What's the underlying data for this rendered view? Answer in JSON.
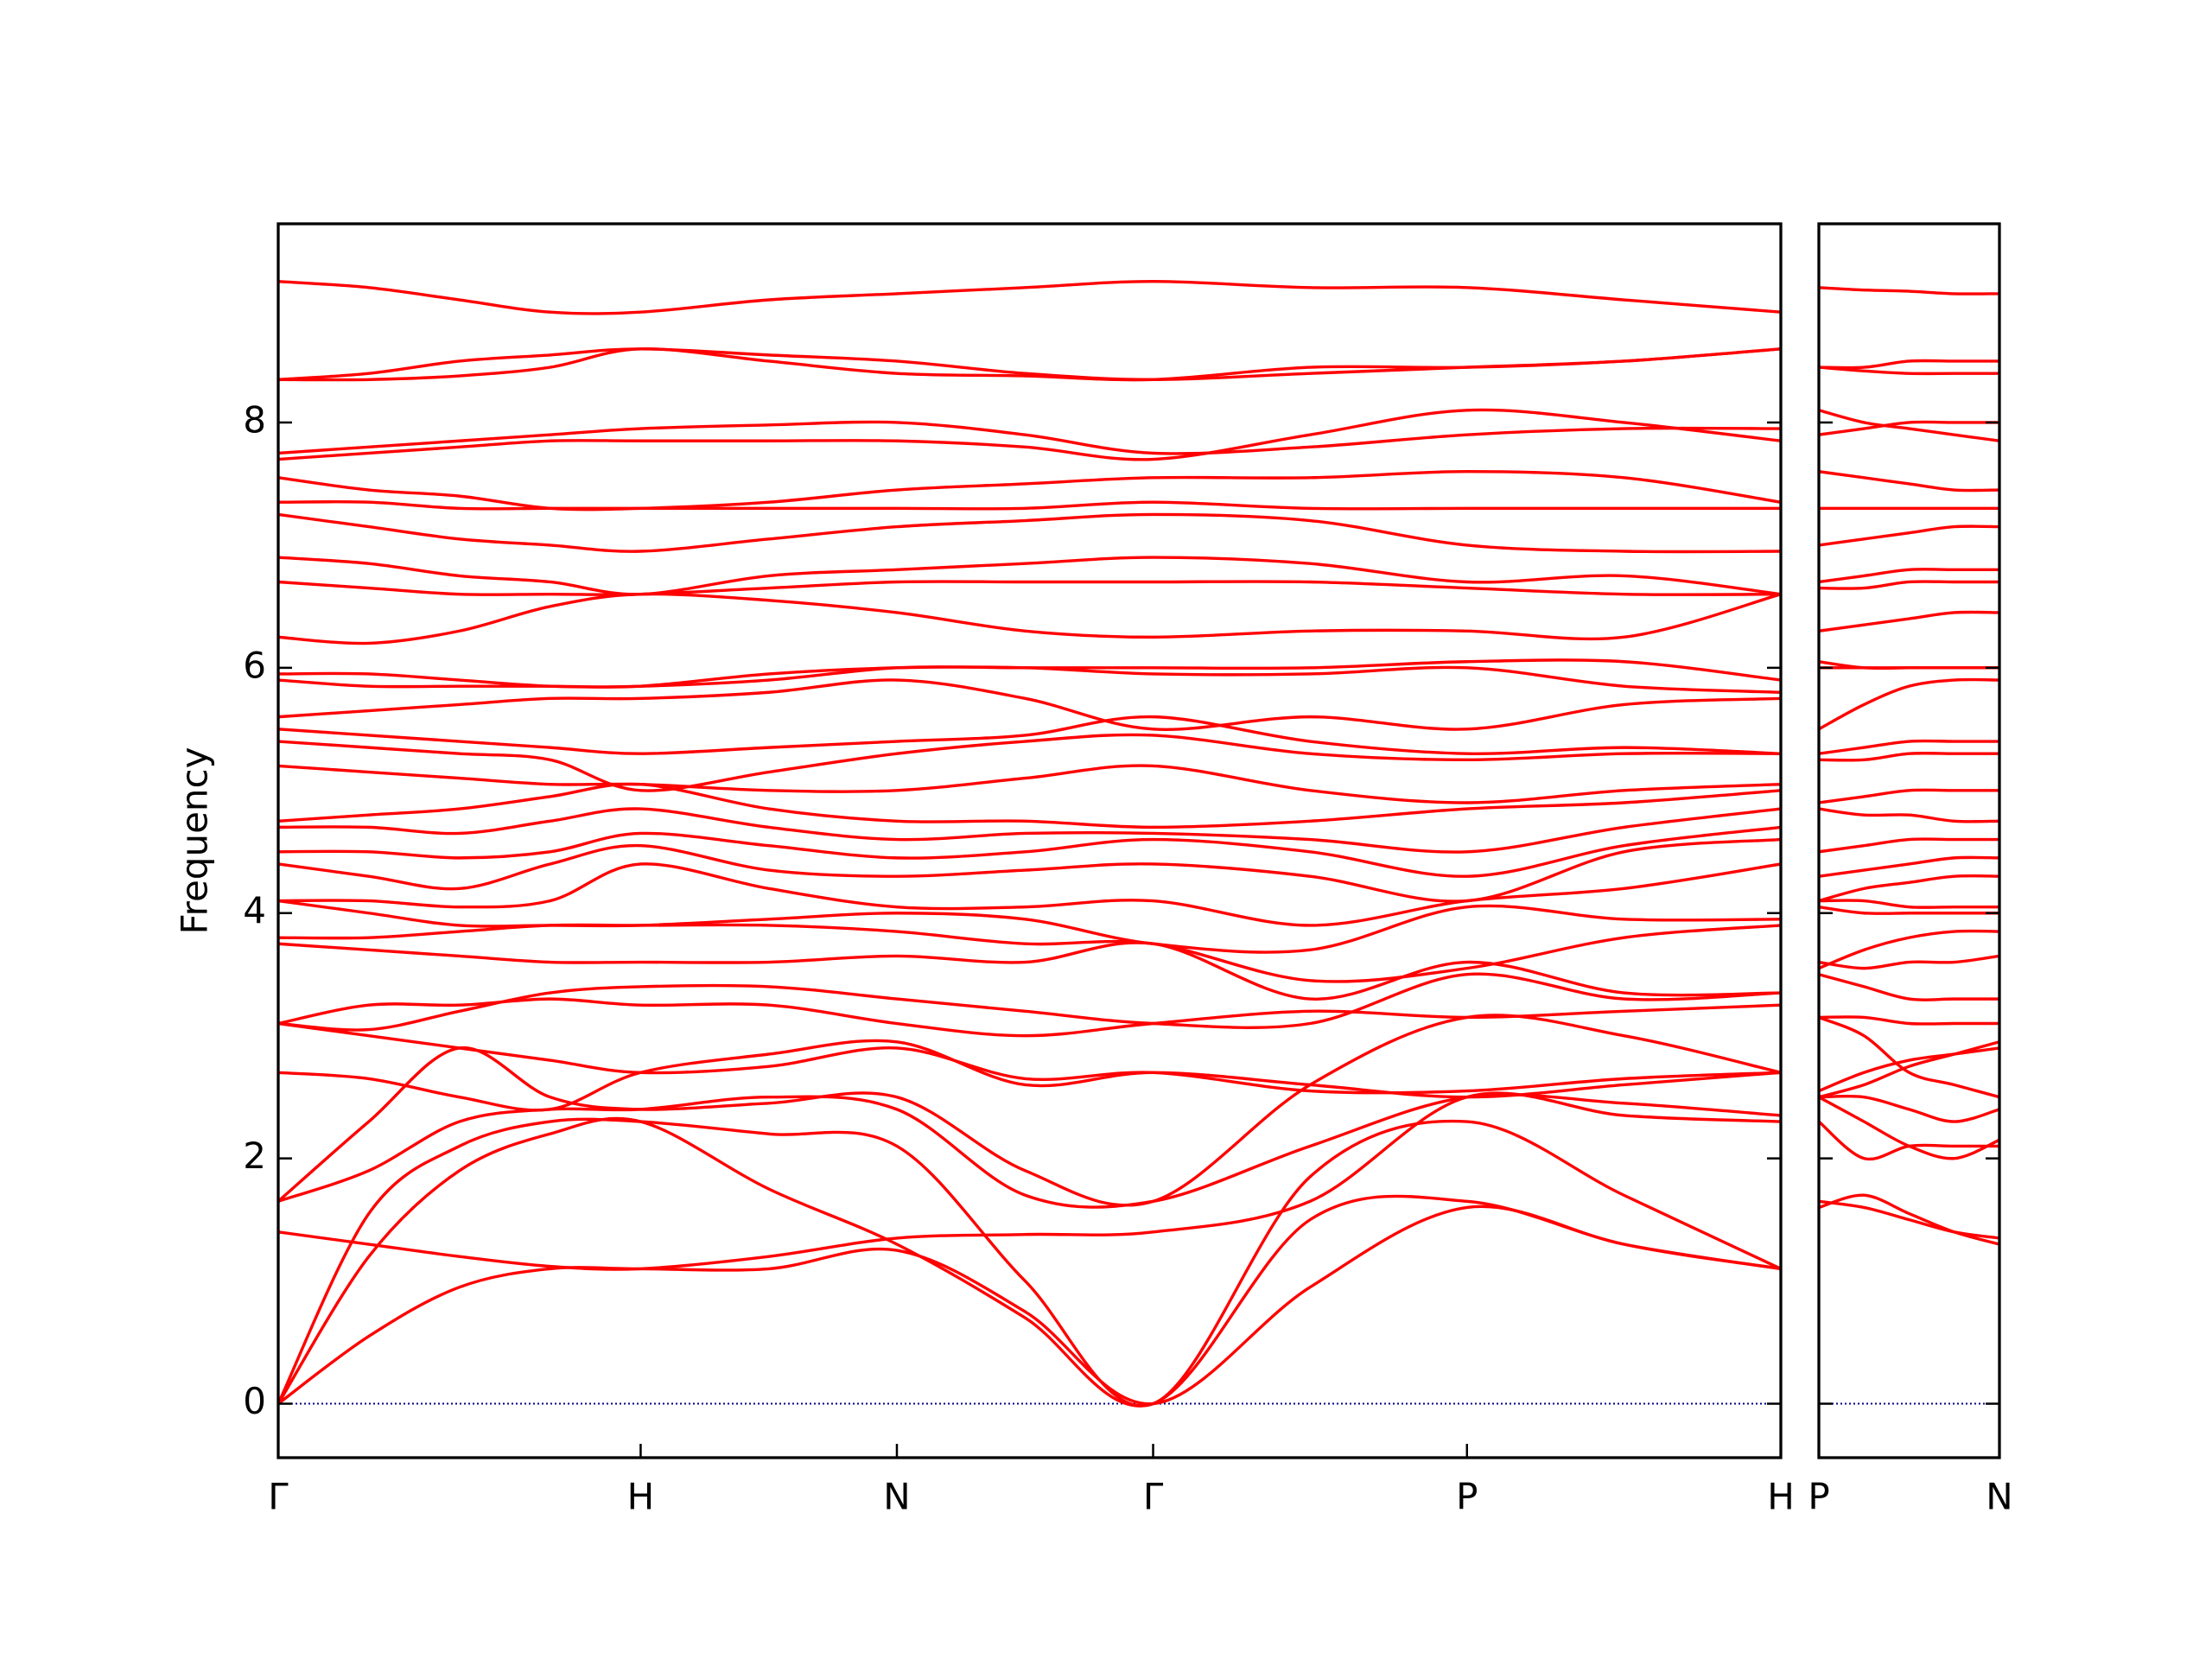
{
  "chart_data": [
    {
      "type": "line",
      "y_label": "Frequency",
      "color": "#ff0000",
      "hlines": [
        0
      ],
      "hline_color": "#00008b",
      "show_ytick_labels": true,
      "x": [
        0,
        0.25,
        0.5,
        0.75,
        1,
        1.354,
        1.707,
        2.061,
        2.414,
        2.847,
        3.28,
        3.713,
        4.146
      ],
      "xlim": [
        0,
        4.146
      ],
      "ylim": [
        -0.44,
        9.62
      ],
      "xticks": [
        {
          "value": 0,
          "label": "Γ"
        },
        {
          "value": 1,
          "label": "H"
        },
        {
          "value": 1.707,
          "label": "N"
        },
        {
          "value": 2.414,
          "label": "Γ"
        },
        {
          "value": 3.28,
          "label": "P"
        },
        {
          "value": 4.146,
          "label": "H"
        }
      ],
      "yticks": [
        0,
        2,
        4,
        6,
        8
      ],
      "series": [
        {
          "values": [
            0,
            0.55,
            0.95,
            1.1,
            1.1,
            1.1,
            1.25,
            0.75,
            0,
            0.95,
            1.6,
            1.3,
            1.1
          ]
        },
        {
          "values": [
            0,
            1.2,
            1.9,
            2.2,
            2.3,
            1.75,
            1.3,
            0.7,
            0,
            1.5,
            1.65,
            1.3,
            1.1
          ]
        },
        {
          "values": [
            0,
            1.55,
            2.1,
            2.3,
            2.3,
            2.2,
            2.1,
            1.0,
            0,
            1.85,
            2.3,
            1.7,
            1.1
          ]
        },
        {
          "values": [
            1.4,
            1.3,
            1.2,
            1.12,
            1.1,
            1.2,
            1.35,
            1.38,
            1.4,
            1.65,
            2.5,
            2.35,
            2.3
          ]
        },
        {
          "values": [
            1.65,
            1.9,
            2.3,
            2.4,
            2.4,
            2.5,
            2.4,
            1.7,
            1.65,
            2.1,
            2.5,
            2.45,
            2.35
          ]
        },
        {
          "values": [
            1.65,
            2.3,
            2.9,
            2.5,
            2.4,
            2.45,
            2.5,
            1.9,
            1.65,
            2.6,
            3.15,
            3.0,
            2.7
          ]
        },
        {
          "values": [
            2.7,
            2.65,
            2.5,
            2.4,
            2.7,
            2.85,
            2.95,
            2.6,
            2.7,
            2.6,
            2.5,
            2.6,
            2.7
          ]
        },
        {
          "values": [
            3.1,
            3.0,
            2.9,
            2.8,
            2.7,
            2.75,
            2.9,
            2.65,
            2.7,
            2.55,
            2.55,
            2.65,
            2.7
          ]
        },
        {
          "values": [
            3.1,
            3.25,
            3.25,
            3.3,
            3.25,
            3.25,
            3.1,
            3.0,
            3.1,
            3.2,
            3.15,
            3.2,
            3.25
          ]
        },
        {
          "values": [
            3.1,
            3.05,
            3.2,
            3.35,
            3.4,
            3.4,
            3.3,
            3.2,
            3.1,
            3.1,
            3.5,
            3.3,
            3.35
          ]
        },
        {
          "values": [
            3.75,
            3.7,
            3.65,
            3.6,
            3.6,
            3.6,
            3.65,
            3.6,
            3.75,
            3.3,
            3.6,
            3.35,
            3.35
          ]
        },
        {
          "values": [
            3.8,
            3.8,
            3.85,
            3.9,
            3.9,
            3.9,
            3.85,
            3.75,
            3.75,
            3.45,
            3.55,
            3.8,
            3.9
          ]
        },
        {
          "values": [
            4.1,
            4.0,
            3.9,
            3.9,
            3.9,
            3.95,
            4.0,
            3.95,
            3.75,
            3.7,
            4.05,
            3.95,
            3.95
          ]
        },
        {
          "values": [
            4.1,
            4.1,
            4.05,
            4.1,
            4.4,
            4.2,
            4.05,
            4.05,
            4.1,
            3.9,
            4.1,
            4.2,
            4.4
          ]
        },
        {
          "values": [
            4.4,
            4.3,
            4.2,
            4.4,
            4.55,
            4.35,
            4.3,
            4.35,
            4.4,
            4.3,
            4.1,
            4.5,
            4.6
          ]
        },
        {
          "values": [
            4.5,
            4.5,
            4.45,
            4.5,
            4.65,
            4.55,
            4.45,
            4.5,
            4.6,
            4.5,
            4.3,
            4.55,
            4.7
          ]
        },
        {
          "values": [
            4.7,
            4.7,
            4.65,
            4.75,
            4.85,
            4.7,
            4.6,
            4.65,
            4.65,
            4.6,
            4.5,
            4.7,
            4.85
          ]
        },
        {
          "values": [
            4.75,
            4.8,
            4.85,
            4.95,
            5.05,
            4.85,
            4.75,
            4.75,
            4.7,
            4.75,
            4.85,
            4.9,
            5.0
          ]
        },
        {
          "values": [
            5.2,
            5.15,
            5.1,
            5.05,
            5.05,
            5.0,
            5.0,
            5.1,
            5.2,
            5.0,
            4.9,
            5.0,
            5.05
          ]
        },
        {
          "values": [
            5.4,
            5.35,
            5.3,
            5.25,
            5.0,
            5.15,
            5.3,
            5.4,
            5.45,
            5.3,
            5.25,
            5.3,
            5.3
          ]
        },
        {
          "values": [
            5.5,
            5.45,
            5.4,
            5.35,
            5.3,
            5.35,
            5.4,
            5.45,
            5.6,
            5.4,
            5.3,
            5.35,
            5.3
          ]
        },
        {
          "values": [
            5.6,
            5.65,
            5.7,
            5.75,
            5.75,
            5.8,
            5.9,
            5.75,
            5.5,
            5.6,
            5.5,
            5.7,
            5.75
          ]
        },
        {
          "values": [
            5.9,
            5.85,
            5.85,
            5.85,
            5.85,
            5.95,
            6.0,
            6.0,
            5.95,
            5.95,
            6.0,
            5.85,
            5.8
          ]
        },
        {
          "values": [
            5.95,
            5.95,
            5.9,
            5.85,
            5.85,
            5.9,
            6.0,
            6.0,
            6.0,
            6.0,
            6.05,
            6.05,
            5.9
          ]
        },
        {
          "values": [
            6.25,
            6.2,
            6.3,
            6.5,
            6.6,
            6.55,
            6.45,
            6.3,
            6.25,
            6.3,
            6.3,
            6.25,
            6.6
          ]
        },
        {
          "values": [
            6.7,
            6.65,
            6.6,
            6.6,
            6.6,
            6.65,
            6.7,
            6.7,
            6.7,
            6.7,
            6.65,
            6.6,
            6.6
          ]
        },
        {
          "values": [
            6.9,
            6.85,
            6.75,
            6.7,
            6.6,
            6.75,
            6.8,
            6.85,
            6.9,
            6.85,
            6.7,
            6.75,
            6.6
          ]
        },
        {
          "values": [
            7.25,
            7.15,
            7.05,
            7.0,
            6.95,
            7.05,
            7.15,
            7.2,
            7.25,
            7.2,
            7.0,
            6.95,
            6.95
          ]
        },
        {
          "values": [
            7.35,
            7.35,
            7.3,
            7.3,
            7.3,
            7.3,
            7.3,
            7.3,
            7.35,
            7.3,
            7.3,
            7.3,
            7.3
          ]
        },
        {
          "values": [
            7.55,
            7.45,
            7.4,
            7.3,
            7.3,
            7.35,
            7.45,
            7.5,
            7.55,
            7.55,
            7.6,
            7.55,
            7.35
          ]
        },
        {
          "values": [
            7.7,
            7.75,
            7.8,
            7.85,
            7.85,
            7.85,
            7.85,
            7.8,
            7.7,
            7.9,
            8.1,
            8.0,
            7.85
          ]
        },
        {
          "values": [
            7.75,
            7.8,
            7.85,
            7.9,
            7.95,
            7.98,
            8.0,
            7.9,
            7.75,
            7.8,
            7.9,
            7.95,
            7.95
          ]
        },
        {
          "values": [
            8.35,
            8.4,
            8.5,
            8.55,
            8.6,
            8.55,
            8.5,
            8.4,
            8.35,
            8.4,
            8.45,
            8.5,
            8.6
          ]
        },
        {
          "values": [
            8.35,
            8.35,
            8.38,
            8.45,
            8.6,
            8.5,
            8.4,
            8.38,
            8.35,
            8.45,
            8.45,
            8.5,
            8.6
          ]
        },
        {
          "values": [
            9.15,
            9.1,
            9.0,
            8.9,
            8.9,
            9.0,
            9.05,
            9.1,
            9.15,
            9.1,
            9.1,
            9.0,
            8.9
          ]
        }
      ]
    },
    {
      "type": "line",
      "color": "#ff0000",
      "hlines": [
        0
      ],
      "hline_color": "#00008b",
      "show_ytick_labels": false,
      "x": [
        0,
        0.125,
        0.25,
        0.375,
        0.5
      ],
      "xlim": [
        0,
        0.5
      ],
      "ylim": [
        -0.44,
        9.62
      ],
      "xticks": [
        {
          "value": 0,
          "label": "P"
        },
        {
          "value": 0.5,
          "label": "N"
        }
      ],
      "yticks": [
        0,
        2,
        4,
        6,
        8
      ],
      "series": [
        {
          "values": [
            1.6,
            1.7,
            1.55,
            1.4,
            1.3
          ]
        },
        {
          "values": [
            1.65,
            1.6,
            1.5,
            1.4,
            1.35
          ]
        },
        {
          "values": [
            2.3,
            2.0,
            2.1,
            2.1,
            2.1
          ]
        },
        {
          "values": [
            2.5,
            2.3,
            2.1,
            2.0,
            2.15
          ]
        },
        {
          "values": [
            2.5,
            2.5,
            2.4,
            2.3,
            2.4
          ]
        },
        {
          "values": [
            3.15,
            3.0,
            2.7,
            2.6,
            2.5
          ]
        },
        {
          "values": [
            2.5,
            2.6,
            2.75,
            2.85,
            2.95
          ]
        },
        {
          "values": [
            2.55,
            2.7,
            2.8,
            2.85,
            2.9
          ]
        },
        {
          "values": [
            3.15,
            3.15,
            3.1,
            3.1,
            3.1
          ]
        },
        {
          "values": [
            3.5,
            3.4,
            3.3,
            3.3,
            3.3
          ]
        },
        {
          "values": [
            3.6,
            3.55,
            3.6,
            3.6,
            3.65
          ]
        },
        {
          "values": [
            3.55,
            3.7,
            3.8,
            3.85,
            3.85
          ]
        },
        {
          "values": [
            4.05,
            4.0,
            4.0,
            4.0,
            4.0
          ]
        },
        {
          "values": [
            4.1,
            4.1,
            4.05,
            4.05,
            4.05
          ]
        },
        {
          "values": [
            4.1,
            4.2,
            4.25,
            4.3,
            4.3
          ]
        },
        {
          "values": [
            4.3,
            4.35,
            4.4,
            4.45,
            4.45
          ]
        },
        {
          "values": [
            4.5,
            4.55,
            4.6,
            4.6,
            4.6
          ]
        },
        {
          "values": [
            4.85,
            4.8,
            4.8,
            4.75,
            4.75
          ]
        },
        {
          "values": [
            4.9,
            4.95,
            5.0,
            5.0,
            5.0
          ]
        },
        {
          "values": [
            5.25,
            5.25,
            5.3,
            5.3,
            5.3
          ]
        },
        {
          "values": [
            5.3,
            5.35,
            5.4,
            5.4,
            5.4
          ]
        },
        {
          "values": [
            5.5,
            5.7,
            5.85,
            5.9,
            5.9
          ]
        },
        {
          "values": [
            6.0,
            6.0,
            6.0,
            6.0,
            6.0
          ]
        },
        {
          "values": [
            6.05,
            6.0,
            6.0,
            6.0,
            6.0
          ]
        },
        {
          "values": [
            6.3,
            6.35,
            6.4,
            6.45,
            6.45
          ]
        },
        {
          "values": [
            6.65,
            6.65,
            6.7,
            6.7,
            6.7
          ]
        },
        {
          "values": [
            6.7,
            6.75,
            6.8,
            6.8,
            6.8
          ]
        },
        {
          "values": [
            7.0,
            7.05,
            7.1,
            7.15,
            7.15
          ]
        },
        {
          "values": [
            7.3,
            7.3,
            7.3,
            7.3,
            7.3
          ]
        },
        {
          "values": [
            7.6,
            7.55,
            7.5,
            7.45,
            7.45
          ]
        },
        {
          "values": [
            8.1,
            8.0,
            7.95,
            7.9,
            7.85
          ]
        },
        {
          "values": [
            7.9,
            7.95,
            8.0,
            8.0,
            8.0
          ]
        },
        {
          "values": [
            8.45,
            8.45,
            8.5,
            8.5,
            8.5
          ]
        },
        {
          "values": [
            8.45,
            8.42,
            8.4,
            8.4,
            8.4
          ]
        },
        {
          "values": [
            9.1,
            9.08,
            9.07,
            9.05,
            9.05
          ]
        }
      ]
    }
  ]
}
